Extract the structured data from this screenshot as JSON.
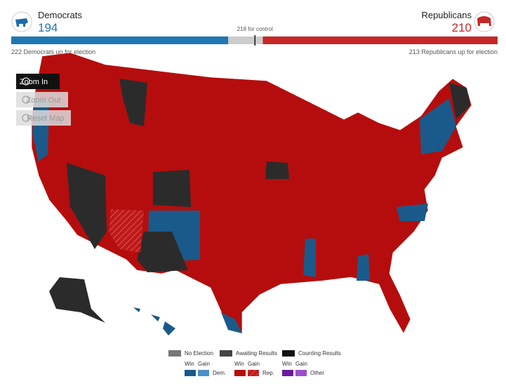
{
  "header": {
    "dem": {
      "label": "Democrats",
      "seats": 194,
      "up": 222,
      "up_text": "Democrats up for election"
    },
    "rep": {
      "label": "Republicans",
      "seats": 210,
      "up": 213,
      "up_text": "Republicans up for election"
    },
    "control": {
      "seats": 218,
      "text": "for control"
    }
  },
  "controls": [
    "Zoom In",
    "Zoom Out",
    "Reset Map"
  ],
  "legend": {
    "status": [
      "No Election",
      "Awaiting Results",
      "Counting Results"
    ],
    "win": "Win",
    "gain": "Gain",
    "parties": [
      "Dem.",
      "Rep.",
      "Other"
    ]
  }
}
